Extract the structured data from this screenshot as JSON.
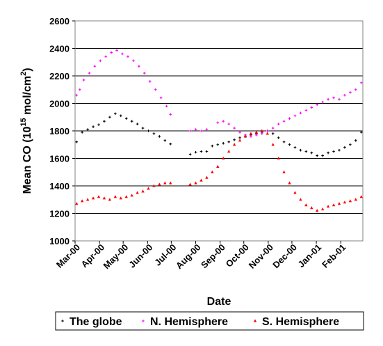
{
  "chart_data": {
    "type": "scatter",
    "xlabel": "Date",
    "ylabel_main": "Mean CO (10",
    "ylabel_exp": "15",
    "ylabel_unit": " mol/cm",
    "ylabel_unit_exp": "2",
    "ylabel_close": ")",
    "ylim": [
      1000,
      2600
    ],
    "yticks": [
      1000,
      1200,
      1400,
      1600,
      1800,
      2000,
      2200,
      2400,
      2600
    ],
    "xlim": [
      "2000-03-01",
      "2001-03-01"
    ],
    "xticks": [
      {
        "label": "Mar-00",
        "date": "2000-03-01"
      },
      {
        "label": "Apr-00",
        "date": "2000-04-01"
      },
      {
        "label": "May-00",
        "date": "2000-05-01"
      },
      {
        "label": "Jun-00",
        "date": "2000-06-01"
      },
      {
        "label": "Jul-00",
        "date": "2000-07-01"
      },
      {
        "label": "Aug-00",
        "date": "2000-08-01"
      },
      {
        "label": "Sep-00",
        "date": "2000-09-01"
      },
      {
        "label": "Oct-00",
        "date": "2000-10-01"
      },
      {
        "label": "Nov-00",
        "date": "2000-11-01"
      },
      {
        "label": "Dec-00",
        "date": "2000-12-01"
      },
      {
        "label": "Jan-01",
        "date": "2001-01-01"
      },
      {
        "label": "Feb-01",
        "date": "2001-02-01"
      }
    ],
    "grid": "horizontal",
    "legend_position": "bottom",
    "series": [
      {
        "name": "The globe",
        "color": "#000000",
        "marker": "plus",
        "points": [
          [
            "2000-03-03",
            1720
          ],
          [
            "2000-03-10",
            1790
          ],
          [
            "2000-03-17",
            1810
          ],
          [
            "2000-03-24",
            1830
          ],
          [
            "2000-03-31",
            1845
          ],
          [
            "2000-04-07",
            1870
          ],
          [
            "2000-04-14",
            1900
          ],
          [
            "2000-04-21",
            1925
          ],
          [
            "2000-04-28",
            1910
          ],
          [
            "2000-05-05",
            1890
          ],
          [
            "2000-05-12",
            1870
          ],
          [
            "2000-05-19",
            1850
          ],
          [
            "2000-05-26",
            1820
          ],
          [
            "2000-06-02",
            1800
          ],
          [
            "2000-06-09",
            1780
          ],
          [
            "2000-06-16",
            1760
          ],
          [
            "2000-06-23",
            1730
          ],
          [
            "2000-06-30",
            1705
          ],
          [
            "2000-07-25",
            1630
          ],
          [
            "2000-08-01",
            1645
          ],
          [
            "2000-08-08",
            1650
          ],
          [
            "2000-08-15",
            1650
          ],
          [
            "2000-08-22",
            1690
          ],
          [
            "2000-08-29",
            1700
          ],
          [
            "2000-09-05",
            1710
          ],
          [
            "2000-09-12",
            1720
          ],
          [
            "2000-09-19",
            1735
          ],
          [
            "2000-09-26",
            1750
          ],
          [
            "2000-10-03",
            1760
          ],
          [
            "2000-10-10",
            1770
          ],
          [
            "2000-10-17",
            1780
          ],
          [
            "2000-10-24",
            1790
          ],
          [
            "2000-10-31",
            1800
          ],
          [
            "2000-11-07",
            1780
          ],
          [
            "2000-11-14",
            1750
          ],
          [
            "2000-11-21",
            1720
          ],
          [
            "2000-11-28",
            1700
          ],
          [
            "2000-12-05",
            1680
          ],
          [
            "2000-12-12",
            1660
          ],
          [
            "2000-12-19",
            1650
          ],
          [
            "2000-12-26",
            1640
          ],
          [
            "2001-01-02",
            1620
          ],
          [
            "2001-01-09",
            1620
          ],
          [
            "2001-01-16",
            1640
          ],
          [
            "2001-01-23",
            1650
          ],
          [
            "2001-01-30",
            1660
          ],
          [
            "2001-02-06",
            1680
          ],
          [
            "2001-02-13",
            1700
          ],
          [
            "2001-02-20",
            1730
          ],
          [
            "2001-02-27",
            1790
          ]
        ]
      },
      {
        "name": "N. Hemisphere",
        "color": "#ff00ff",
        "marker": "plus",
        "points": [
          [
            "2000-03-03",
            2060
          ],
          [
            "2000-03-07",
            2100
          ],
          [
            "2000-03-12",
            2170
          ],
          [
            "2000-03-19",
            2220
          ],
          [
            "2000-03-26",
            2270
          ],
          [
            "2000-04-02",
            2310
          ],
          [
            "2000-04-09",
            2340
          ],
          [
            "2000-04-16",
            2370
          ],
          [
            "2000-04-23",
            2385
          ],
          [
            "2000-04-30",
            2360
          ],
          [
            "2000-05-07",
            2340
          ],
          [
            "2000-05-14",
            2310
          ],
          [
            "2000-05-21",
            2270
          ],
          [
            "2000-05-28",
            2220
          ],
          [
            "2000-06-04",
            2160
          ],
          [
            "2000-06-11",
            2100
          ],
          [
            "2000-06-18",
            2040
          ],
          [
            "2000-06-25",
            1980
          ],
          [
            "2000-06-30",
            1920
          ],
          [
            "2000-07-25",
            1800
          ],
          [
            "2000-08-01",
            1810
          ],
          [
            "2000-08-08",
            1800
          ],
          [
            "2000-08-15",
            1810
          ],
          [
            "2000-08-29",
            1860
          ],
          [
            "2000-09-05",
            1870
          ],
          [
            "2000-09-12",
            1850
          ],
          [
            "2000-09-19",
            1820
          ],
          [
            "2000-09-26",
            1790
          ],
          [
            "2000-10-03",
            1770
          ],
          [
            "2000-10-10",
            1760
          ],
          [
            "2000-10-17",
            1770
          ],
          [
            "2000-10-24",
            1780
          ],
          [
            "2000-10-31",
            1800
          ],
          [
            "2000-11-07",
            1820
          ],
          [
            "2000-11-14",
            1850
          ],
          [
            "2000-11-21",
            1870
          ],
          [
            "2000-11-28",
            1890
          ],
          [
            "2000-12-05",
            1910
          ],
          [
            "2000-12-12",
            1930
          ],
          [
            "2000-12-19",
            1950
          ],
          [
            "2000-12-26",
            1970
          ],
          [
            "2001-01-02",
            1990
          ],
          [
            "2001-01-09",
            2010
          ],
          [
            "2001-01-16",
            2030
          ],
          [
            "2001-01-23",
            2040
          ],
          [
            "2001-01-30",
            2030
          ],
          [
            "2001-02-06",
            2060
          ],
          [
            "2001-02-13",
            2080
          ],
          [
            "2001-02-20",
            2100
          ],
          [
            "2001-02-27",
            2150
          ]
        ]
      },
      {
        "name": "S. Hemisphere",
        "color": "#ff0000",
        "marker": "triangle",
        "points": [
          [
            "2000-03-03",
            1270
          ],
          [
            "2000-03-10",
            1290
          ],
          [
            "2000-03-17",
            1300
          ],
          [
            "2000-03-24",
            1310
          ],
          [
            "2000-03-31",
            1320
          ],
          [
            "2000-04-07",
            1310
          ],
          [
            "2000-04-14",
            1300
          ],
          [
            "2000-04-21",
            1320
          ],
          [
            "2000-04-28",
            1310
          ],
          [
            "2000-05-05",
            1320
          ],
          [
            "2000-05-12",
            1330
          ],
          [
            "2000-05-19",
            1350
          ],
          [
            "2000-05-26",
            1360
          ],
          [
            "2000-06-02",
            1380
          ],
          [
            "2000-06-09",
            1400
          ],
          [
            "2000-06-16",
            1410
          ],
          [
            "2000-06-23",
            1420
          ],
          [
            "2000-06-30",
            1420
          ],
          [
            "2000-07-25",
            1410
          ],
          [
            "2000-08-01",
            1420
          ],
          [
            "2000-08-08",
            1440
          ],
          [
            "2000-08-15",
            1460
          ],
          [
            "2000-08-22",
            1500
          ],
          [
            "2000-08-29",
            1540
          ],
          [
            "2000-09-05",
            1600
          ],
          [
            "2000-09-12",
            1650
          ],
          [
            "2000-09-19",
            1700
          ],
          [
            "2000-09-26",
            1730
          ],
          [
            "2000-10-03",
            1760
          ],
          [
            "2000-10-10",
            1780
          ],
          [
            "2000-10-17",
            1790
          ],
          [
            "2000-10-24",
            1800
          ],
          [
            "2000-10-31",
            1780
          ],
          [
            "2000-11-07",
            1700
          ],
          [
            "2000-11-14",
            1600
          ],
          [
            "2000-11-21",
            1500
          ],
          [
            "2000-11-28",
            1420
          ],
          [
            "2000-12-05",
            1350
          ],
          [
            "2000-12-12",
            1300
          ],
          [
            "2000-12-19",
            1260
          ],
          [
            "2000-12-26",
            1240
          ],
          [
            "2001-01-02",
            1220
          ],
          [
            "2001-01-09",
            1230
          ],
          [
            "2001-01-16",
            1250
          ],
          [
            "2001-01-23",
            1260
          ],
          [
            "2001-01-30",
            1270
          ],
          [
            "2001-02-06",
            1280
          ],
          [
            "2001-02-13",
            1290
          ],
          [
            "2001-02-20",
            1300
          ],
          [
            "2001-02-27",
            1320
          ]
        ]
      }
    ]
  }
}
